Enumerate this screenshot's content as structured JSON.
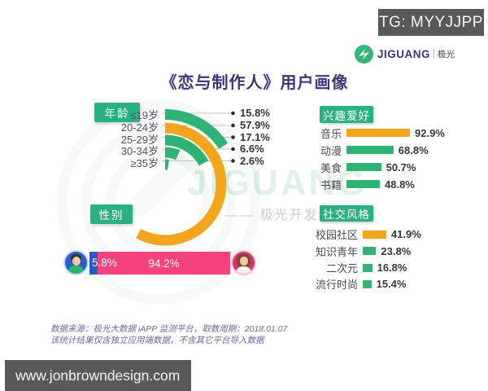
{
  "badge": {
    "text": "TG: MYYJJPP"
  },
  "logo": {
    "name": "JIGUANG",
    "cn": "极光"
  },
  "title": {
    "text": "《恋与制作人》用户画像"
  },
  "watermark": {
    "text": "JIGUANG",
    "cn": "—— 极光开发者服务"
  },
  "colors": {
    "green": "#2fb375",
    "orange": "#f2a51d",
    "pink": "#f4437c",
    "blue": "#2a58c6",
    "teal": "#2bb181",
    "navy": "#3c3679",
    "box_gray": "#58595b",
    "leader_line": "#c4c4c8",
    "dot": "#2b2b2b"
  },
  "chart_data": [
    {
      "id": "age",
      "type": "bar",
      "variant": "radial-arcs",
      "title": "年龄",
      "unit": "%",
      "categories": [
        "≤19岁",
        "20-24岁",
        "25-29岁",
        "30-34岁",
        "≥35岁"
      ],
      "values": [
        15.8,
        57.9,
        17.1,
        6.6,
        2.6
      ],
      "display": [
        "15.8%",
        "57.9%",
        "17.1%",
        "6.6%",
        "2.6%"
      ],
      "bar_colors": [
        "green",
        "orange",
        "green",
        "green",
        "green"
      ],
      "start_angle_deg": 0,
      "sweep_per_percent_deg": 3.6
    },
    {
      "id": "gender",
      "type": "bar",
      "variant": "stacked-horizontal",
      "title": "性别",
      "unit": "%",
      "categories": [
        "男",
        "女"
      ],
      "values": [
        5.8,
        94.2
      ],
      "display": [
        "5.8%",
        "94.2%"
      ],
      "bar_colors": [
        "blue",
        "pink"
      ]
    },
    {
      "id": "interests",
      "type": "bar",
      "variant": "horizontal",
      "title": "兴趣爱好",
      "unit": "%",
      "categories": [
        "音乐",
        "动漫",
        "美食",
        "书籍"
      ],
      "values": [
        92.9,
        68.8,
        50.7,
        48.8
      ],
      "display": [
        "92.9%",
        "68.8%",
        "50.7%",
        "48.8%"
      ],
      "bar_colors": [
        "orange",
        "green",
        "green",
        "green"
      ]
    },
    {
      "id": "social",
      "type": "bar",
      "variant": "horizontal",
      "title": "社交风格",
      "unit": "%",
      "categories": [
        "校园社区",
        "知识青年",
        "二次元",
        "流行时尚"
      ],
      "values": [
        41.9,
        23.8,
        16.8,
        15.4
      ],
      "display": [
        "41.9%",
        "23.8%",
        "16.8%",
        "15.4%"
      ],
      "bar_colors": [
        "orange",
        "green",
        "green",
        "green"
      ]
    }
  ],
  "footnote": {
    "line1": "数据来源：极光大数据 iAPP 监测平台，取数周期：2018.01.07",
    "line2": "该统计结果仅含独立应用端数据，不含其它平台导入数据"
  },
  "footer": {
    "url": "www.jonbrowndesign.com"
  }
}
